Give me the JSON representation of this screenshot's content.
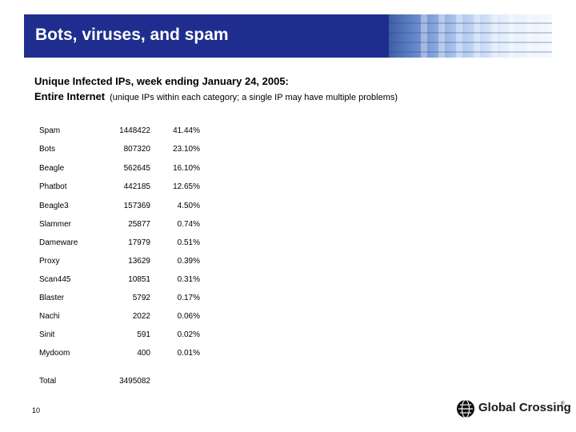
{
  "slide": {
    "title": "Bots, viruses, and spam",
    "heading": "Unique Infected IPs, week ending January 24, 2005:",
    "sub_bold": "Entire Internet",
    "sub_note": "(unique IPs within each category; a single IP may have multiple problems)",
    "slide_number": "10"
  },
  "table": {
    "rows": [
      {
        "name": "Spam",
        "count": "1448422",
        "pct": "41.44%"
      },
      {
        "name": "Bots",
        "count": "807320",
        "pct": "23.10%"
      },
      {
        "name": "Beagle",
        "count": "562645",
        "pct": "16.10%"
      },
      {
        "name": "Phatbot",
        "count": "442185",
        "pct": "12.65%"
      },
      {
        "name": "Beagle3",
        "count": "157369",
        "pct": "4.50%"
      },
      {
        "name": "Slammer",
        "count": "25877",
        "pct": "0.74%"
      },
      {
        "name": "Dameware",
        "count": "17979",
        "pct": "0.51%"
      },
      {
        "name": "Proxy",
        "count": "13629",
        "pct": "0.39%"
      },
      {
        "name": "Scan445",
        "count": "10851",
        "pct": "0.31%"
      },
      {
        "name": "Blaster",
        "count": "5792",
        "pct": "0.17%"
      },
      {
        "name": "Nachi",
        "count": "2022",
        "pct": "0.06%"
      },
      {
        "name": "Sinit",
        "count": "591",
        "pct": "0.02%"
      },
      {
        "name": "Mydoom",
        "count": "400",
        "pct": "0.01%"
      }
    ],
    "total_label": "Total",
    "total_value": "3495082"
  },
  "logo": {
    "text": "Global Crossing",
    "mark": "®",
    "icon": "globe-icon"
  },
  "colors": {
    "banner": "#1f2e8e",
    "banner_text": "#ffffff"
  }
}
